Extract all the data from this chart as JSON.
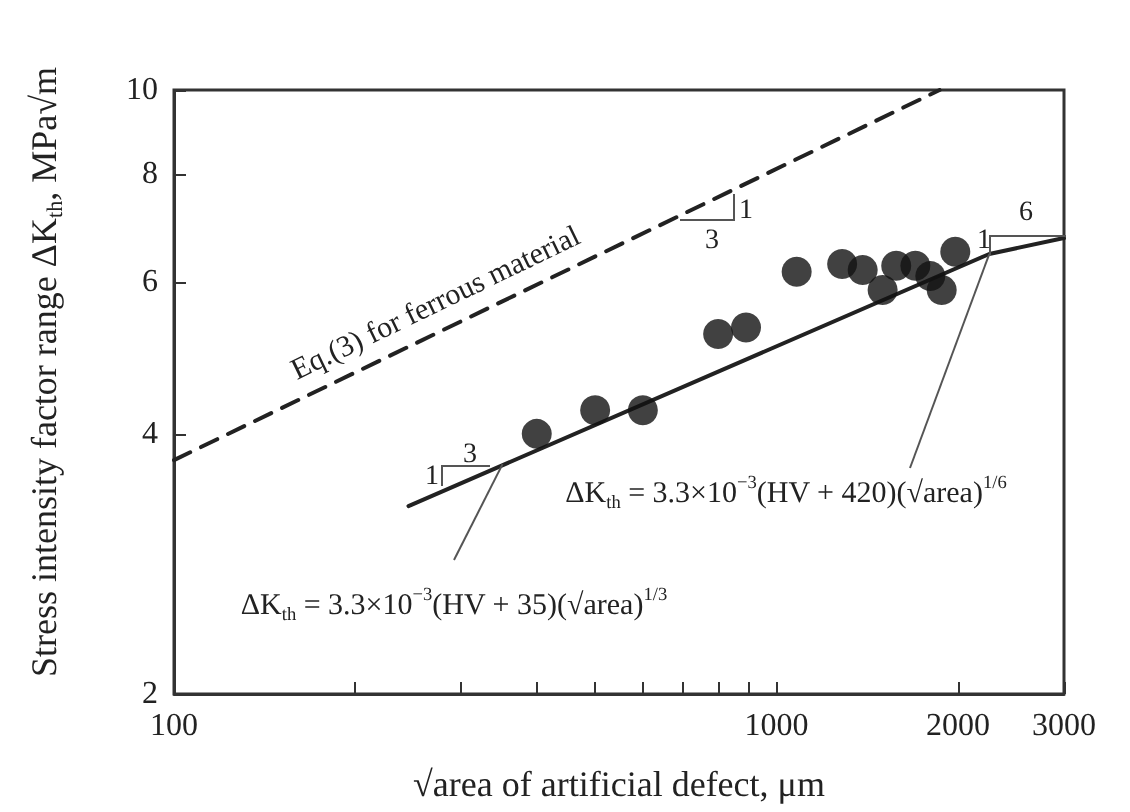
{
  "chart_data": {
    "type": "scatter",
    "xlabel": "√area of artificial defect, μm",
    "ylabel": "Stress intensity factor range ΔK$_{th}$, MPa√m",
    "log": "xy",
    "grid": false,
    "marker": "circle",
    "xlim": [
      100,
      3000
    ],
    "ylim": [
      2,
      10
    ],
    "xticks": [
      100,
      {
        "value": 200,
        "label": null
      },
      {
        "value": 300,
        "label": null
      },
      {
        "value": 400,
        "label": null
      },
      {
        "value": 500,
        "label": null
      },
      {
        "value": 600,
        "label": null
      },
      {
        "value": 700,
        "label": null
      },
      {
        "value": 800,
        "label": null
      },
      {
        "value": 900,
        "label": null
      },
      1000,
      2000,
      3000
    ],
    "yticks": [
      2,
      4,
      6,
      8,
      10
    ],
    "series": [
      {
        "color": "#111111",
        "x": [
          400,
          500,
          600,
          800,
          890,
          1080,
          1285,
          1390,
          1500,
          1580,
          1700,
          1800,
          1880,
          1980
        ],
        "values": [
          4.0,
          4.26,
          4.26,
          5.22,
          5.31,
          6.16,
          6.29,
          6.19,
          5.87,
          6.26,
          6.26,
          6.09,
          5.87,
          6.5
        ]
      },
      {
        "type": "line",
        "color": "#222222",
        "line_style": "solid",
        "marker": "none",
        "x": [
          245,
          2255,
          3000
        ],
        "values": [
          3.3,
          6.46,
          6.74
        ]
      },
      {
        "type": "line",
        "color": "#222222",
        "line_style": "dashed",
        "marker": "none",
        "x": [
          100,
          1865
        ],
        "values": [
          3.73,
          10
        ]
      }
    ],
    "annotations": [
      "Eq.(3) for ferrous material",
      "1",
      "3",
      "1",
      "6",
      "1",
      "3",
      {
        "text": "ΔK$_{th}$ = 3.3×10$^{−3}$(HV + 420)(√area)$^{1/6}$",
        "x": 2255,
        "y": 6.46
      },
      {
        "text": "ΔK$_{th}$ = 3.3×10$^{−3}$(HV + 35)(√area)$^{1/3}$",
        "x": 351,
        "y": 3.69
      }
    ]
  }
}
